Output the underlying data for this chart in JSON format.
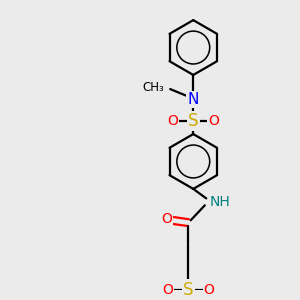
{
  "background_color": "#ebebeb",
  "atom_colors": {
    "N": "#0000FF",
    "O": "#FF0000",
    "S": "#CCAA00",
    "NH": "#008080"
  },
  "line_color": "#000000",
  "line_width": 1.6,
  "font_size": 10
}
